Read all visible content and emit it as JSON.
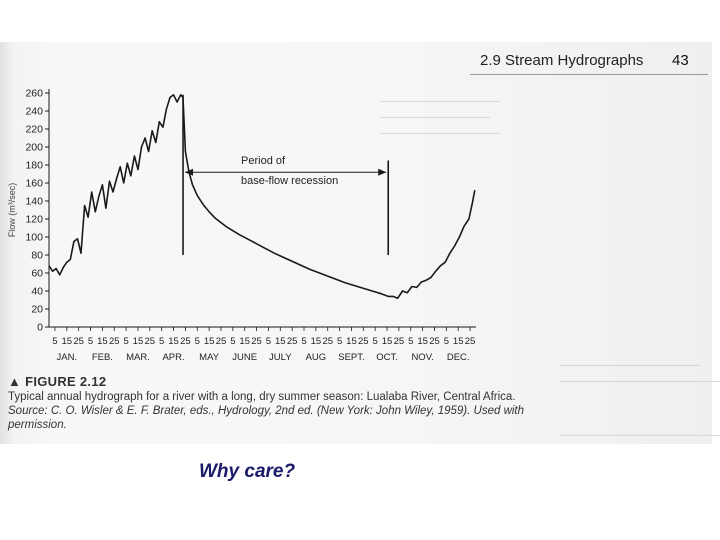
{
  "page": {
    "section_title": "2.9 Stream Hydrographs",
    "page_number": "43",
    "figure_label": "▲ FIGURE 2.12",
    "figure_caption": "Typical annual hydrograph for a river with a long, dry summer season: Lualaba River, Central Africa.",
    "figure_source": "Source: C. O. Wisler & E. F. Brater, eds., Hydrology, 2nd ed. (New York: John Wiley, 1959). Used with permission.",
    "slide_caption": "Why care?"
  },
  "colors": {
    "ink": "#1a1a1a",
    "paper": "#f6f6f6",
    "slide_caption": "#1a1a6a"
  },
  "chart_data": {
    "type": "line",
    "ylabel": "Flow (m³/sec)",
    "ylim": [
      0,
      260
    ],
    "yticks": [
      0,
      20,
      40,
      60,
      80,
      100,
      120,
      140,
      160,
      180,
      200,
      220,
      240,
      260
    ],
    "xlim": [
      0,
      360
    ],
    "day_ticks_per_month": [
      "5",
      "15",
      "25"
    ],
    "months": [
      "JAN.",
      "FEB.",
      "MAR.",
      "APR.",
      "MAY",
      "JUNE",
      "JULY",
      "AUG",
      "SEPT.",
      "OCT.",
      "NOV.",
      "DEC."
    ],
    "annotation": {
      "text_line1": "Period of",
      "text_line2": "base-flow recession",
      "x_start": 113,
      "x_end": 286,
      "y": 172
    },
    "series": [
      {
        "points": [
          [
            0,
            68
          ],
          [
            3,
            62
          ],
          [
            6,
            65
          ],
          [
            9,
            58
          ],
          [
            12,
            66
          ],
          [
            15,
            72
          ],
          [
            18,
            75
          ],
          [
            21,
            95
          ],
          [
            24,
            98
          ],
          [
            27,
            82
          ],
          [
            30,
            135
          ],
          [
            33,
            122
          ],
          [
            36,
            150
          ],
          [
            39,
            128
          ],
          [
            42,
            145
          ],
          [
            45,
            158
          ],
          [
            48,
            132
          ],
          [
            51,
            162
          ],
          [
            54,
            150
          ],
          [
            57,
            165
          ],
          [
            60,
            178
          ],
          [
            63,
            160
          ],
          [
            66,
            182
          ],
          [
            69,
            168
          ],
          [
            72,
            190
          ],
          [
            75,
            175
          ],
          [
            78,
            200
          ],
          [
            81,
            210
          ],
          [
            84,
            195
          ],
          [
            87,
            218
          ],
          [
            90,
            205
          ],
          [
            93,
            228
          ],
          [
            96,
            222
          ],
          [
            99,
            242
          ],
          [
            102,
            255
          ],
          [
            105,
            258
          ],
          [
            108,
            250
          ],
          [
            111,
            258
          ],
          [
            113,
            255
          ],
          [
            115,
            195
          ],
          [
            118,
            172
          ],
          [
            121,
            158
          ],
          [
            125,
            146
          ],
          [
            130,
            136
          ],
          [
            135,
            128
          ],
          [
            140,
            121
          ],
          [
            150,
            111
          ],
          [
            160,
            103
          ],
          [
            170,
            96
          ],
          [
            180,
            89
          ],
          [
            190,
            82
          ],
          [
            200,
            76
          ],
          [
            210,
            70
          ],
          [
            220,
            64
          ],
          [
            230,
            59
          ],
          [
            240,
            54
          ],
          [
            250,
            49
          ],
          [
            260,
            45
          ],
          [
            270,
            41
          ],
          [
            280,
            37
          ],
          [
            286,
            34
          ],
          [
            290,
            34
          ],
          [
            294,
            32
          ],
          [
            298,
            40
          ],
          [
            302,
            38
          ],
          [
            306,
            45
          ],
          [
            310,
            44
          ],
          [
            314,
            50
          ],
          [
            318,
            52
          ],
          [
            322,
            55
          ],
          [
            326,
            62
          ],
          [
            330,
            68
          ],
          [
            334,
            72
          ],
          [
            338,
            82
          ],
          [
            342,
            90
          ],
          [
            346,
            100
          ],
          [
            350,
            112
          ],
          [
            354,
            120
          ],
          [
            357,
            138
          ],
          [
            359,
            152
          ]
        ]
      }
    ]
  }
}
